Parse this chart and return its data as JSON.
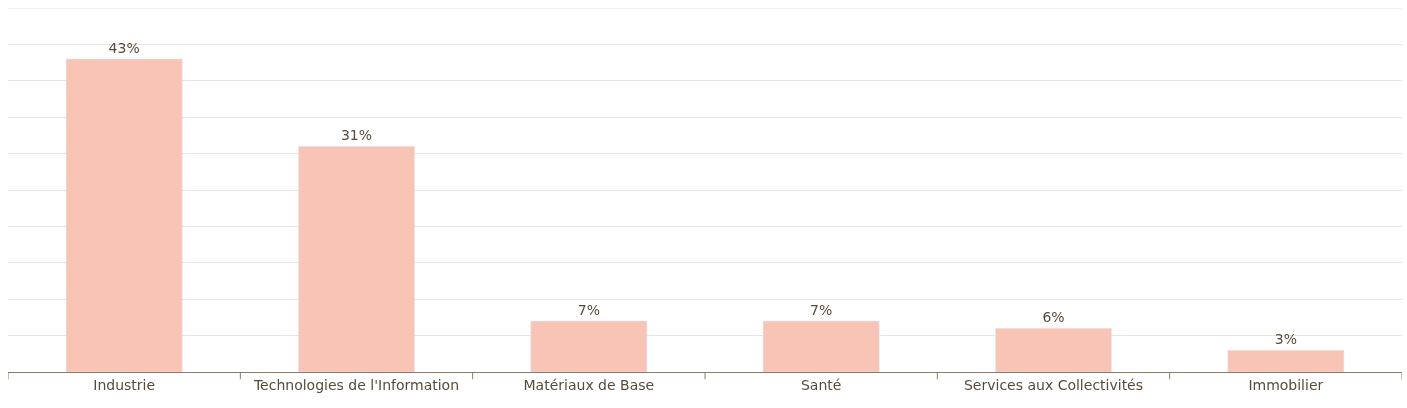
{
  "chart_data": {
    "type": "bar",
    "categories": [
      "Industrie",
      "Technologies de l'Information",
      "Matériaux de Base",
      "Santé",
      "Services aux Collectivités",
      "Immobilier"
    ],
    "values": [
      43,
      31,
      7,
      7,
      6,
      3
    ],
    "value_labels": [
      "43%",
      "31%",
      "7%",
      "7%",
      "6%",
      "3%"
    ],
    "color": "#f7c4b6",
    "ylim": [
      0,
      50
    ],
    "yticks": [
      {
        "value": 0,
        "label": null
      },
      {
        "value": 5,
        "label": null
      },
      {
        "value": 10,
        "label": null
      },
      {
        "value": 15,
        "label": null
      },
      {
        "value": 20,
        "label": null
      },
      {
        "value": 25,
        "label": null
      },
      {
        "value": 30,
        "label": null
      },
      {
        "value": 35,
        "label": null
      },
      {
        "value": 40,
        "label": null
      },
      {
        "value": 45,
        "label": null
      },
      {
        "value": 50,
        "label": null
      }
    ],
    "grid": "y",
    "tick_labels": "x"
  }
}
